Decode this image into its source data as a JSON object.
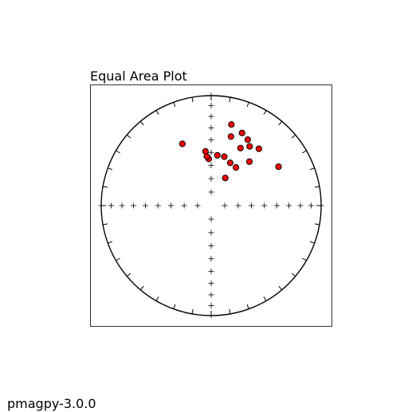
{
  "chart_data": {
    "type": "scatter",
    "projection": "equal-area",
    "title": "Equal Area Plot",
    "hemisphere": "lower",
    "units": "degrees",
    "grid": false,
    "legend": "none",
    "tick_interval_deg": 10,
    "cross_tick_interval_deg": 10,
    "marker": {
      "fill": "#ff0000",
      "edge": "#000000",
      "shape": "circle"
    },
    "points": [
      {
        "dec": 335.0,
        "inc": 38.0
      },
      {
        "dec": 14.0,
        "inc": 25.0
      },
      {
        "dec": 29.0,
        "inc": 32.0
      },
      {
        "dec": 16.0,
        "inc": 35.0
      },
      {
        "dec": 23.0,
        "inc": 29.0
      },
      {
        "dec": 27.0,
        "inc": 41.0
      },
      {
        "dec": 33.0,
        "inc": 36.0
      },
      {
        "dec": 40.0,
        "inc": 33.0
      },
      {
        "dec": 41.0,
        "inc": 46.0
      },
      {
        "dec": 60.0,
        "inc": 30.0
      },
      {
        "dec": 15.0,
        "inc": 52.0
      },
      {
        "dec": 357.0,
        "inc": 55.0
      },
      {
        "dec": 354.0,
        "inc": 49.0
      },
      {
        "dec": 355.0,
        "inc": 53.0
      },
      {
        "dec": 7.0,
        "inc": 52.0
      },
      {
        "dec": 33.0,
        "inc": 56.0
      },
      {
        "dec": 24.0,
        "inc": 55.0
      },
      {
        "dec": 27.0,
        "inc": 67.0
      }
    ]
  },
  "footer": {
    "label": "pmagpy-3.0.0"
  },
  "colors": {
    "background": "#ffffff",
    "axis": "#000000",
    "marker_fill": "#ff0000",
    "marker_edge": "#000000"
  }
}
